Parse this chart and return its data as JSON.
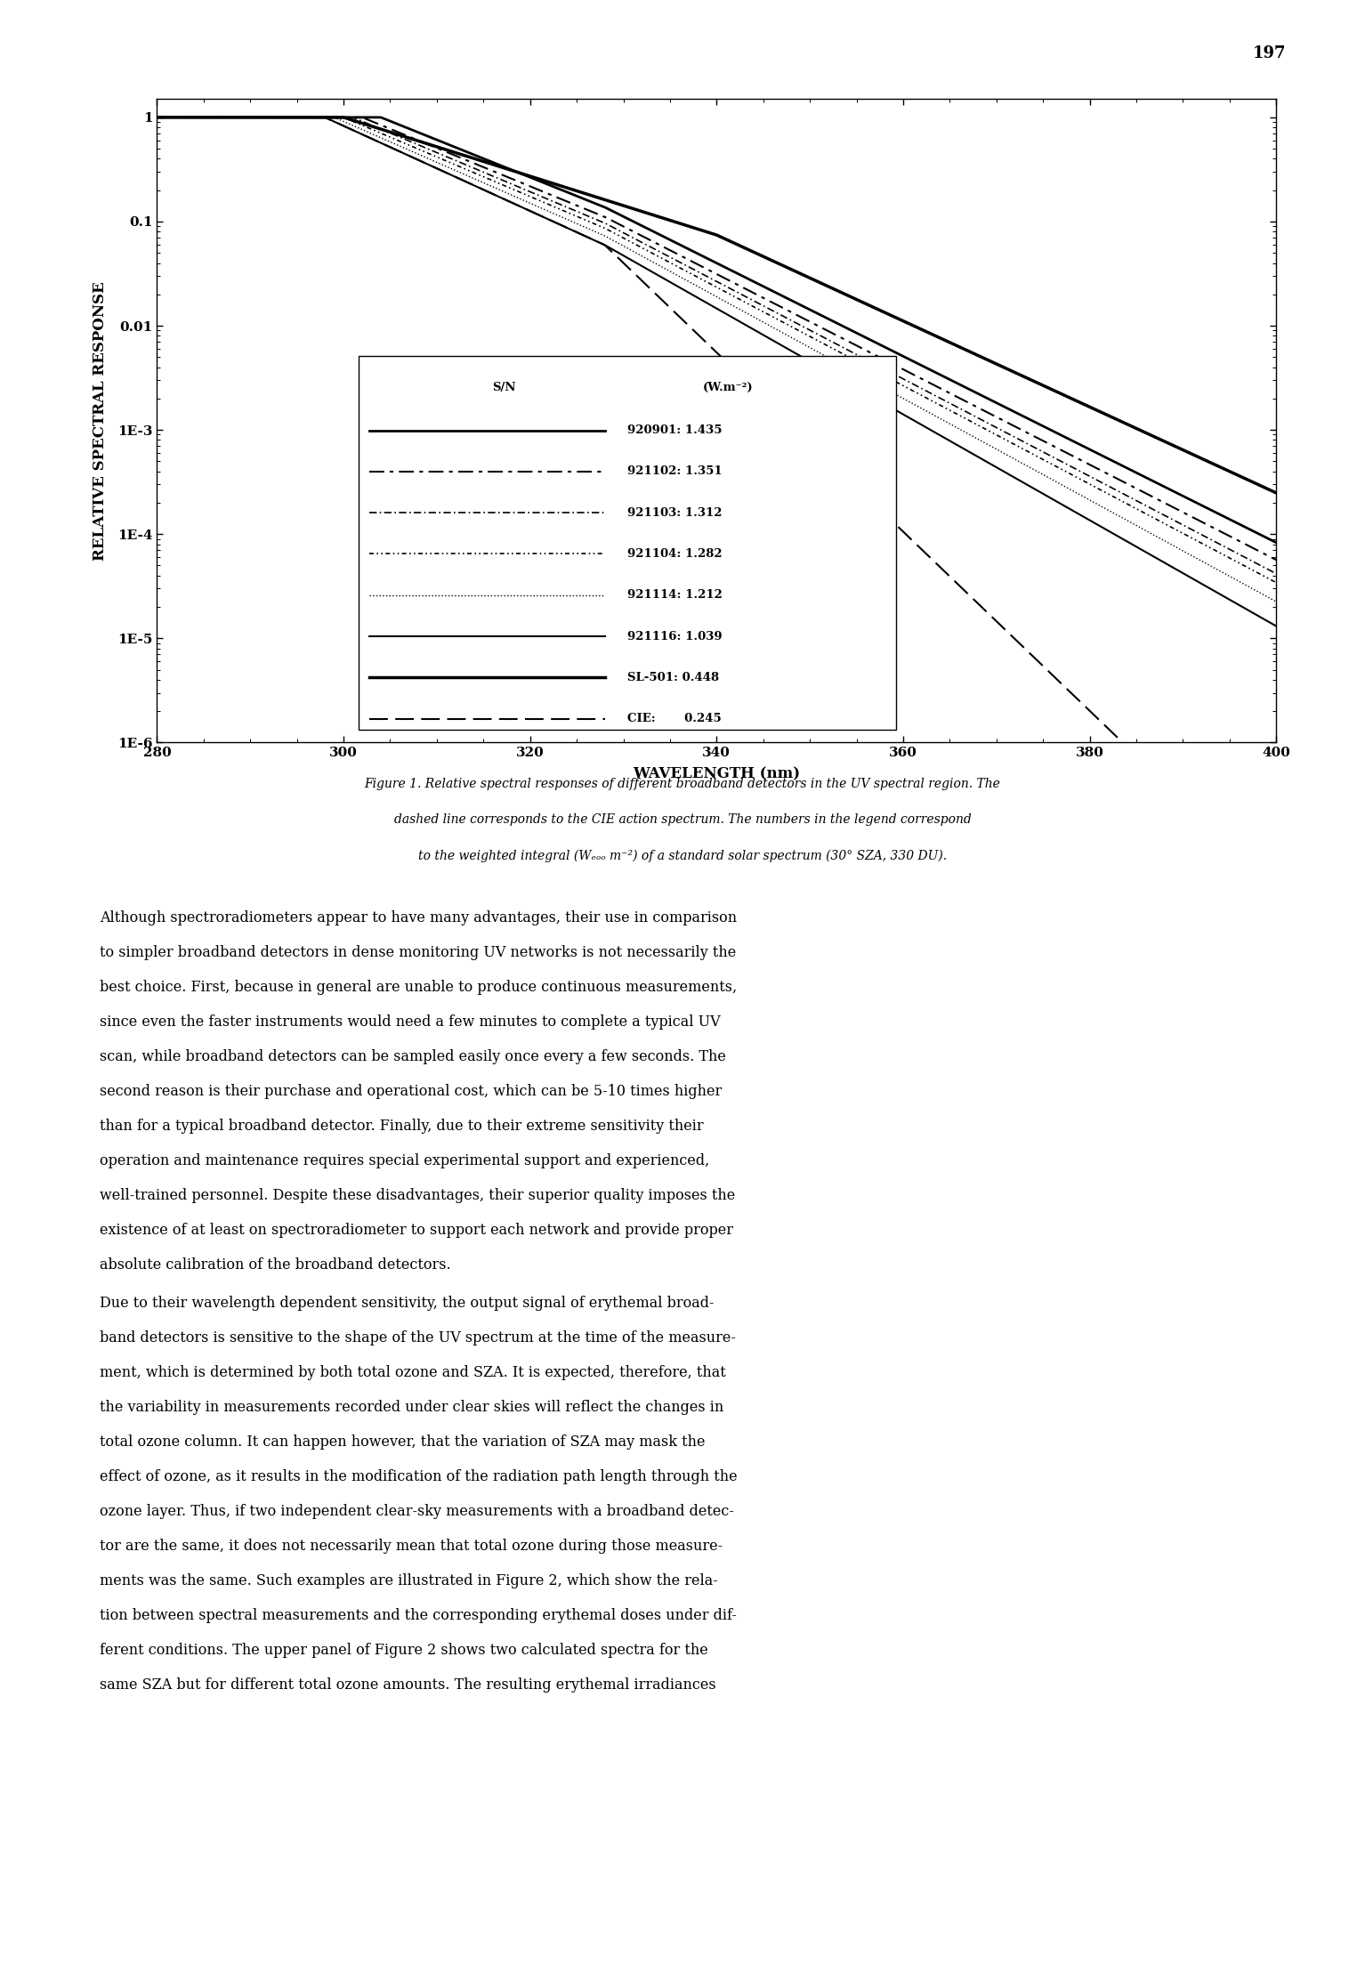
{
  "xlabel": "WAVELENGTH (nm)",
  "ylabel": "RELATIVE SPECTRAL RESPONSE",
  "xlim": [
    280,
    400
  ],
  "xticks": [
    280,
    300,
    320,
    340,
    360,
    380,
    400
  ],
  "ytick_labels": [
    "1E-6",
    "1E-5",
    "1E-4",
    "1E-3",
    "0.01",
    "0.1",
    "1"
  ],
  "ytick_vals": [
    1e-06,
    1e-05,
    0.0001,
    0.001,
    0.01,
    0.1,
    1.0
  ],
  "page_number": "197",
  "legend_entries": [
    {
      "label": "920901: 1.435",
      "ls": "-",
      "lw": 2.0,
      "dashes": null
    },
    {
      "label": "921102: 1.351",
      "ls": "--",
      "lw": 1.5,
      "dashes": [
        8,
        3,
        2,
        3
      ]
    },
    {
      "label": "921103: 1.312",
      "ls": "--",
      "lw": 1.2,
      "dashes": [
        5,
        2,
        1,
        2
      ]
    },
    {
      "label": "921104: 1.282",
      "ls": "--",
      "lw": 1.2,
      "dashes": [
        3,
        2,
        1,
        2,
        1,
        2
      ]
    },
    {
      "label": "921114: 1.212",
      "ls": ":",
      "lw": 1.0,
      "dashes": null
    },
    {
      "label": "921116: 1.039",
      "ls": "-",
      "lw": 1.5,
      "dashes": null
    },
    {
      "label": "SL-501: 0.448",
      "ls": "-",
      "lw": 2.5,
      "dashes": null
    },
    {
      "label": "CIE:       0.245",
      "ls": "--",
      "lw": 1.5,
      "dashes": [
        10,
        4
      ]
    }
  ],
  "caption_line1": "Figure 1. Relative spectral responses of different broadband detectors in the UV spectral region. The",
  "caption_line2": "dashed line corresponds to the CIE action spectrum. The numbers in the legend correspond",
  "caption_line3": "to the weighted integral (Wₑₒₒ m⁻²) of a standard solar spectrum (30° SZA, 330 DU).",
  "para1": [
    "Although spectroradiometers appear to have many advantages, their use in comparison",
    "to simpler broadband detectors in dense monitoring UV networks is not necessarily the",
    "best choice. First, because in general are unable to produce continuous measurements,",
    "since even the faster instruments would need a few minutes to complete a typical UV",
    "scan, while broadband detectors can be sampled easily once every a few seconds. The",
    "second reason is their purchase and operational cost, which can be 5-10 times higher",
    "than for a typical broadband detector. Finally, due to their extreme sensitivity their",
    "operation and maintenance requires special experimental support and experienced,",
    "well-trained personnel. Despite these disadvantages, their superior quality imposes the",
    "existence of at least on spectroradiometer to support each network and provide proper",
    "absolute calibration of the broadband detectors."
  ],
  "para2": [
    "Due to their wavelength dependent sensitivity, the output signal of erythemal broad-",
    "band detectors is sensitive to the shape of the UV spectrum at the time of the measure-",
    "ment, which is determined by both total ozone and SZA. It is expected, therefore, that",
    "the variability in measurements recorded under clear skies will reflect the changes in",
    "total ozone column. It can happen however, that the variation of SZA may mask the",
    "effect of ozone, as it results in the modification of the radiation path length through the",
    "ozone layer. Thus, if two independent clear-sky measurements with a broadband detec-",
    "tor are the same, it does not necessarily mean that total ozone during those measure-",
    "ments was the same. Such examples are illustrated in Figure 2, which show the rela-",
    "tion between spectral measurements and the corresponding erythemal doses under dif-",
    "ferent conditions. The upper panel of Figure 2 shows two calculated spectra for the",
    "same SZA but for different total ozone amounts. The resulting erythemal irradiances"
  ]
}
